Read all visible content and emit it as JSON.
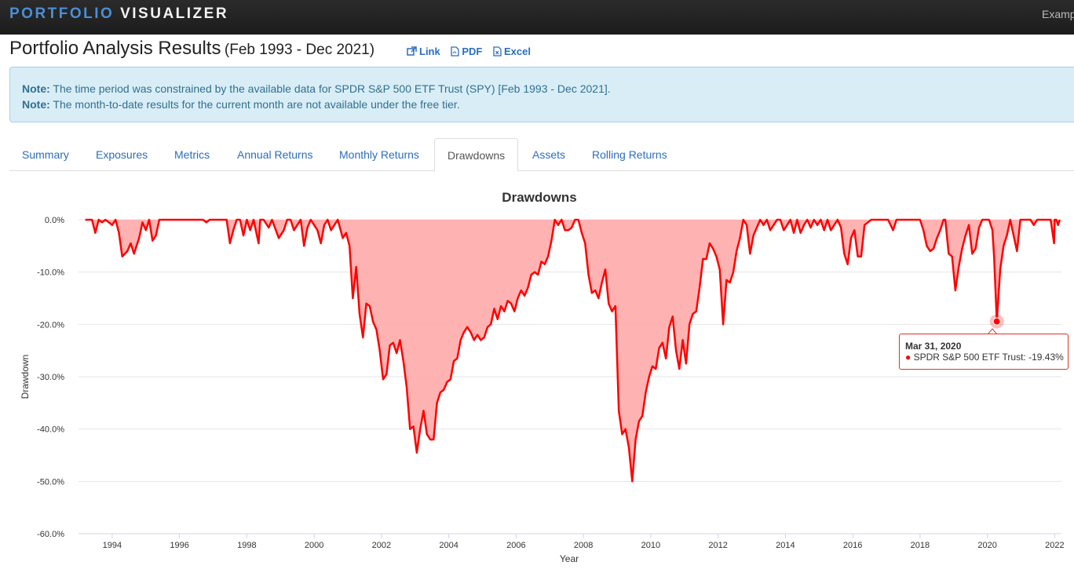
{
  "nav": {
    "brand_part1": "PORTFOLIO",
    "brand_part2": "VISUALIZER",
    "right_item": "Examp"
  },
  "header": {
    "title": "Portfolio Analysis Results",
    "period": "(Feb 1993 - Dec 2021)",
    "actions": [
      {
        "label": "Link",
        "icon": "external-link-icon"
      },
      {
        "label": "PDF",
        "icon": "pdf-file-icon"
      },
      {
        "label": "Excel",
        "icon": "excel-file-icon"
      }
    ]
  },
  "notes": [
    {
      "label": "Note:",
      "text": "The time period was constrained by the available data for SPDR S&P 500 ETF Trust (SPY) [Feb 1993 - Dec 2021]."
    },
    {
      "label": "Note:",
      "text": "The month-to-date results for the current month are not available under the free tier."
    }
  ],
  "tabs": [
    {
      "label": "Summary",
      "active": false
    },
    {
      "label": "Exposures",
      "active": false
    },
    {
      "label": "Metrics",
      "active": false
    },
    {
      "label": "Annual Returns",
      "active": false
    },
    {
      "label": "Monthly Returns",
      "active": false
    },
    {
      "label": "Drawdowns",
      "active": true
    },
    {
      "label": "Assets",
      "active": false
    },
    {
      "label": "Rolling Returns",
      "active": false
    }
  ],
  "tooltip": {
    "date": "Mar 31, 2020",
    "series": "SPDR S&P 500 ETF Trust",
    "value": "-19.43%",
    "text": "SPDR S&P 500 ETF Trust: -19.43%"
  },
  "chart_data": {
    "type": "area",
    "title": "Drawdowns",
    "xlabel": "Year",
    "ylabel": "Drawdown",
    "xlim": [
      1993.0,
      2022.2
    ],
    "ylim": [
      -60,
      0
    ],
    "x_ticks": [
      "1994",
      "1996",
      "1998",
      "2000",
      "2002",
      "2004",
      "2006",
      "2008",
      "2010",
      "2012",
      "2014",
      "2016",
      "2018",
      "2020",
      "2022"
    ],
    "y_ticks": [
      "0.0%",
      "-10.0%",
      "-20.0%",
      "-30.0%",
      "-40.0%",
      "-50.0%",
      "-60.0%"
    ],
    "grid": true,
    "colors": {
      "line": "#ff0000",
      "fill": "#ffaaaa"
    },
    "series": [
      {
        "name": "SPDR S&P 500 ETF Trust",
        "points": [
          [
            1993.2,
            0
          ],
          [
            1993.4,
            0
          ],
          [
            1993.5,
            -2.5
          ],
          [
            1993.6,
            0
          ],
          [
            1993.7,
            -0.5
          ],
          [
            1993.8,
            0
          ],
          [
            1993.9,
            -0.5
          ],
          [
            1994.0,
            -1.0
          ],
          [
            1994.1,
            0
          ],
          [
            1994.2,
            -2.5
          ],
          [
            1994.3,
            -7.0
          ],
          [
            1994.45,
            -6.0
          ],
          [
            1994.55,
            -4.5
          ],
          [
            1994.65,
            -6.5
          ],
          [
            1994.8,
            -3.5
          ],
          [
            1994.9,
            -0.5
          ],
          [
            1995.0,
            -2.0
          ],
          [
            1995.1,
            0
          ],
          [
            1995.2,
            -4.0
          ],
          [
            1995.3,
            -3.0
          ],
          [
            1995.4,
            0
          ],
          [
            1996.7,
            0
          ],
          [
            1996.8,
            -0.5
          ],
          [
            1996.9,
            0
          ],
          [
            1997.4,
            0
          ],
          [
            1997.5,
            -4.5
          ],
          [
            1997.6,
            -2.0
          ],
          [
            1997.7,
            0
          ],
          [
            1997.8,
            0
          ],
          [
            1997.9,
            -3.0
          ],
          [
            1998.0,
            0
          ],
          [
            1998.1,
            -2.0
          ],
          [
            1998.2,
            0
          ],
          [
            1998.35,
            -4.5
          ],
          [
            1998.4,
            0
          ],
          [
            1998.5,
            0
          ],
          [
            1998.65,
            -1.5
          ],
          [
            1998.75,
            0
          ],
          [
            1998.95,
            -3.5
          ],
          [
            1999.1,
            -2.0
          ],
          [
            1999.2,
            0
          ],
          [
            1999.3,
            0
          ],
          [
            1999.4,
            -2.0
          ],
          [
            1999.5,
            -1.0
          ],
          [
            1999.6,
            0
          ],
          [
            1999.7,
            -5.0
          ],
          [
            1999.8,
            -1.5
          ],
          [
            1999.9,
            0
          ],
          [
            2000.1,
            -2.0
          ],
          [
            2000.2,
            -4.5
          ],
          [
            2000.3,
            -1.0
          ],
          [
            2000.4,
            0
          ],
          [
            2000.5,
            -2.0
          ],
          [
            2000.6,
            -1.0
          ],
          [
            2000.7,
            0
          ],
          [
            2000.85,
            -3.5
          ],
          [
            2000.95,
            -2.5
          ],
          [
            2001.05,
            -5.0
          ],
          [
            2001.15,
            -15.0
          ],
          [
            2001.25,
            -9.0
          ],
          [
            2001.35,
            -18.0
          ],
          [
            2001.45,
            -22.5
          ],
          [
            2001.55,
            -16.0
          ],
          [
            2001.65,
            -16.5
          ],
          [
            2001.75,
            -19.5
          ],
          [
            2001.85,
            -21.0
          ],
          [
            2001.95,
            -25.0
          ],
          [
            2002.05,
            -30.5
          ],
          [
            2002.15,
            -29.5
          ],
          [
            2002.25,
            -24.0
          ],
          [
            2002.35,
            -23.5
          ],
          [
            2002.45,
            -25.5
          ],
          [
            2002.55,
            -23.0
          ],
          [
            2002.65,
            -27.0
          ],
          [
            2002.75,
            -32.0
          ],
          [
            2002.85,
            -40.0
          ],
          [
            2002.95,
            -39.5
          ],
          [
            2003.05,
            -44.5
          ],
          [
            2003.15,
            -40.0
          ],
          [
            2003.25,
            -36.5
          ],
          [
            2003.35,
            -41.0
          ],
          [
            2003.45,
            -42.0
          ],
          [
            2003.55,
            -42.0
          ],
          [
            2003.65,
            -35.0
          ],
          [
            2003.75,
            -33.0
          ],
          [
            2003.85,
            -32.5
          ],
          [
            2003.95,
            -31.0
          ],
          [
            2004.05,
            -30.5
          ],
          [
            2004.15,
            -27.0
          ],
          [
            2004.25,
            -26.5
          ],
          [
            2004.35,
            -23.0
          ],
          [
            2004.45,
            -21.5
          ],
          [
            2004.55,
            -20.5
          ],
          [
            2004.65,
            -21.5
          ],
          [
            2004.75,
            -23.0
          ],
          [
            2004.85,
            -22.0
          ],
          [
            2004.95,
            -23.0
          ],
          [
            2005.05,
            -22.5
          ],
          [
            2005.15,
            -20.5
          ],
          [
            2005.25,
            -20.0
          ],
          [
            2005.35,
            -17.0
          ],
          [
            2005.45,
            -19.0
          ],
          [
            2005.55,
            -16.5
          ],
          [
            2005.65,
            -17.5
          ],
          [
            2005.75,
            -15.5
          ],
          [
            2005.85,
            -16.0
          ],
          [
            2005.95,
            -17.5
          ],
          [
            2006.05,
            -15.0
          ],
          [
            2006.15,
            -13.5
          ],
          [
            2006.25,
            -14.5
          ],
          [
            2006.35,
            -13.0
          ],
          [
            2006.45,
            -10.5
          ],
          [
            2006.55,
            -10.0
          ],
          [
            2006.65,
            -10.5
          ],
          [
            2006.75,
            -8.0
          ],
          [
            2006.85,
            -8.5
          ],
          [
            2006.95,
            -7.0
          ],
          [
            2007.05,
            -4.0
          ],
          [
            2007.15,
            0
          ],
          [
            2007.25,
            -1.0
          ],
          [
            2007.35,
            0
          ],
          [
            2007.45,
            -2.0
          ],
          [
            2007.55,
            -2.0
          ],
          [
            2007.65,
            -1.5
          ],
          [
            2007.75,
            0
          ],
          [
            2007.85,
            0
          ],
          [
            2007.95,
            -2.5
          ],
          [
            2008.05,
            -4.5
          ],
          [
            2008.15,
            -10.5
          ],
          [
            2008.25,
            -14.0
          ],
          [
            2008.35,
            -13.5
          ],
          [
            2008.45,
            -15.0
          ],
          [
            2008.55,
            -12.0
          ],
          [
            2008.65,
            -9.5
          ],
          [
            2008.75,
            -16.0
          ],
          [
            2008.85,
            -17.5
          ],
          [
            2008.95,
            -16.5
          ],
          [
            2009.05,
            -36.5
          ],
          [
            2009.15,
            -41.0
          ],
          [
            2009.25,
            -40.0
          ],
          [
            2009.35,
            -43.5
          ],
          [
            2009.45,
            -50.0
          ],
          [
            2009.55,
            -42.0
          ],
          [
            2009.65,
            -38.5
          ],
          [
            2009.75,
            -37.5
          ],
          [
            2009.85,
            -33.0
          ],
          [
            2009.95,
            -30.0
          ],
          [
            2010.05,
            -28.0
          ],
          [
            2010.15,
            -28.5
          ],
          [
            2010.25,
            -24.5
          ],
          [
            2010.35,
            -23.5
          ],
          [
            2010.45,
            -26.5
          ],
          [
            2010.55,
            -20.5
          ],
          [
            2010.65,
            -18.5
          ],
          [
            2010.75,
            -25.0
          ],
          [
            2010.85,
            -28.5
          ],
          [
            2010.95,
            -23.0
          ],
          [
            2011.05,
            -27.5
          ],
          [
            2011.15,
            -20.0
          ],
          [
            2011.25,
            -18.0
          ],
          [
            2011.35,
            -17.5
          ],
          [
            2011.45,
            -13.0
          ],
          [
            2011.55,
            -7.5
          ],
          [
            2011.65,
            -7.5
          ],
          [
            2011.75,
            -4.5
          ],
          [
            2011.85,
            -5.5
          ],
          [
            2011.95,
            -7.0
          ],
          [
            2012.05,
            -9.5
          ],
          [
            2012.15,
            -20.0
          ],
          [
            2012.25,
            -11.5
          ],
          [
            2012.35,
            -12.0
          ],
          [
            2012.45,
            -10.0
          ],
          [
            2012.55,
            -6.0
          ],
          [
            2012.65,
            -3.5
          ],
          [
            2012.75,
            0
          ],
          [
            2012.85,
            -1.0
          ],
          [
            2012.95,
            -6.5
          ],
          [
            2013.05,
            -3.0
          ],
          [
            2013.15,
            -1.5
          ],
          [
            2013.25,
            0
          ],
          [
            2013.35,
            -1.0
          ],
          [
            2013.45,
            0
          ],
          [
            2013.55,
            -2.0
          ],
          [
            2013.65,
            -1.0
          ],
          [
            2013.75,
            0
          ],
          [
            2013.85,
            0
          ],
          [
            2013.95,
            -2.0
          ],
          [
            2014.05,
            -1.0
          ],
          [
            2014.15,
            0
          ],
          [
            2014.25,
            -2.5
          ],
          [
            2014.35,
            0
          ],
          [
            2014.45,
            -2.5
          ],
          [
            2014.55,
            -1.0
          ],
          [
            2014.65,
            0
          ],
          [
            2014.75,
            -1.5
          ],
          [
            2014.85,
            0
          ],
          [
            2014.95,
            -1.0
          ],
          [
            2015.05,
            0
          ],
          [
            2015.15,
            -2.0
          ],
          [
            2015.25,
            0
          ],
          [
            2015.35,
            -2.0
          ],
          [
            2015.45,
            -1.0
          ],
          [
            2015.55,
            0
          ],
          [
            2015.65,
            -1.5
          ],
          [
            2015.75,
            -6.5
          ],
          [
            2015.85,
            -8.5
          ],
          [
            2015.95,
            -3.5
          ],
          [
            2016.05,
            -2.0
          ],
          [
            2016.15,
            -7.0
          ],
          [
            2016.25,
            -7.0
          ],
          [
            2016.35,
            -1.0
          ],
          [
            2016.45,
            -0.5
          ],
          [
            2016.55,
            0
          ],
          [
            2016.65,
            0
          ],
          [
            2016.75,
            0
          ],
          [
            2016.85,
            0
          ],
          [
            2016.95,
            0
          ],
          [
            2017.05,
            0
          ],
          [
            2017.2,
            -2.0
          ],
          [
            2017.3,
            0
          ],
          [
            2018.0,
            0
          ],
          [
            2018.1,
            -2.0
          ],
          [
            2018.2,
            -5.0
          ],
          [
            2018.3,
            -6.0
          ],
          [
            2018.4,
            -5.5
          ],
          [
            2018.5,
            -3.5
          ],
          [
            2018.6,
            -2.0
          ],
          [
            2018.7,
            0
          ],
          [
            2018.75,
            0
          ],
          [
            2018.85,
            -6.5
          ],
          [
            2018.95,
            -7.0
          ],
          [
            2019.05,
            -13.5
          ],
          [
            2019.15,
            -9.0
          ],
          [
            2019.25,
            -5.5
          ],
          [
            2019.35,
            -3.0
          ],
          [
            2019.45,
            -1.0
          ],
          [
            2019.55,
            -6.5
          ],
          [
            2019.65,
            -5.5
          ],
          [
            2019.75,
            -1.5
          ],
          [
            2019.85,
            0
          ],
          [
            2019.95,
            0
          ],
          [
            2020.05,
            0
          ],
          [
            2020.15,
            -2.0
          ],
          [
            2020.2,
            -7.0
          ],
          [
            2020.28,
            -19.43
          ],
          [
            2020.38,
            -9.5
          ],
          [
            2020.48,
            -5.0
          ],
          [
            2020.58,
            -3.0
          ],
          [
            2020.68,
            0
          ],
          [
            2020.78,
            -3.0
          ],
          [
            2020.88,
            -6.0
          ],
          [
            2020.98,
            0
          ],
          [
            2021.08,
            0
          ],
          [
            2021.18,
            0
          ],
          [
            2021.28,
            0
          ],
          [
            2021.38,
            -1.0
          ],
          [
            2021.48,
            0
          ],
          [
            2021.58,
            0
          ],
          [
            2021.68,
            0
          ],
          [
            2021.78,
            0
          ],
          [
            2021.88,
            0
          ],
          [
            2021.98,
            -4.5
          ],
          [
            2022.0,
            0
          ],
          [
            2022.05,
            0
          ],
          [
            2022.1,
            -1.0
          ],
          [
            2022.15,
            0
          ]
        ]
      }
    ],
    "highlight": {
      "x": 2020.28,
      "y": -19.43
    }
  }
}
